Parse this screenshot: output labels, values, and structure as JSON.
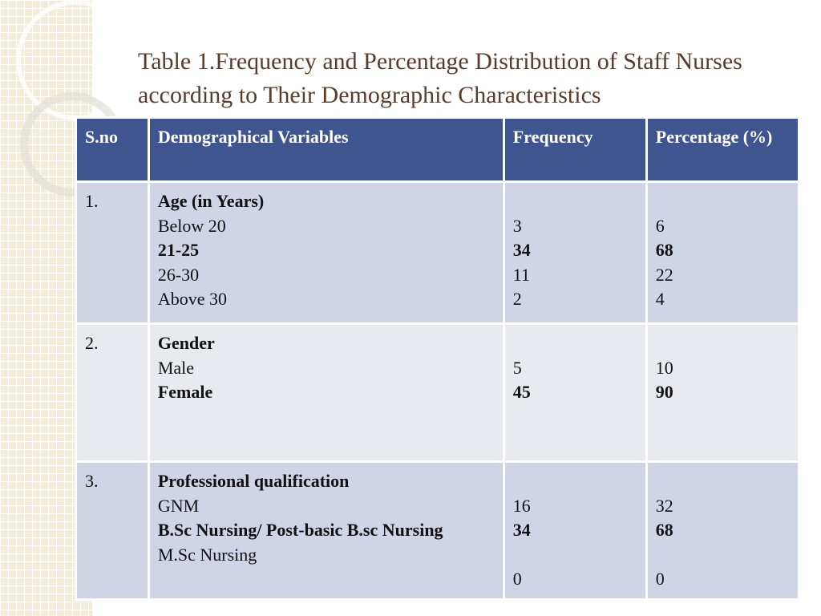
{
  "title": "Table 1.Frequency and Percentage Distribution of Staff Nurses according to Their Demographic Characteristics",
  "table": {
    "header": [
      "S.no",
      "Demographical Variables",
      "Frequency",
      "Percentage (%)"
    ],
    "rows": [
      {
        "sno": "1.",
        "variable": "Age (in Years)",
        "items": [
          {
            "label": "Below 20",
            "frequency": 3,
            "percentage": 6,
            "bold": false
          },
          {
            "label": "21-25",
            "frequency": 34,
            "percentage": 68,
            "bold": true
          },
          {
            "label": "26-30",
            "frequency": 11,
            "percentage": 22,
            "bold": false
          },
          {
            "label": "Above 30",
            "frequency": 2,
            "percentage": 4,
            "bold": false
          }
        ]
      },
      {
        "sno": "2.",
        "variable": "Gender",
        "items": [
          {
            "label": "Male",
            "frequency": 5,
            "percentage": 10,
            "bold": false
          },
          {
            "label": "Female",
            "frequency": 45,
            "percentage": 90,
            "bold": true
          }
        ]
      },
      {
        "sno": "3.",
        "variable": "Professional qualification",
        "items": [
          {
            "label": "GNM",
            "frequency": 16,
            "percentage": 32,
            "bold": false
          },
          {
            "label": "B.Sc Nursing/ Post-basic B.sc Nursing",
            "frequency": 34,
            "percentage": 68,
            "bold": true
          },
          {
            "label": "M.Sc Nursing",
            "frequency": 0,
            "percentage": 0,
            "bold": false
          }
        ]
      }
    ]
  }
}
